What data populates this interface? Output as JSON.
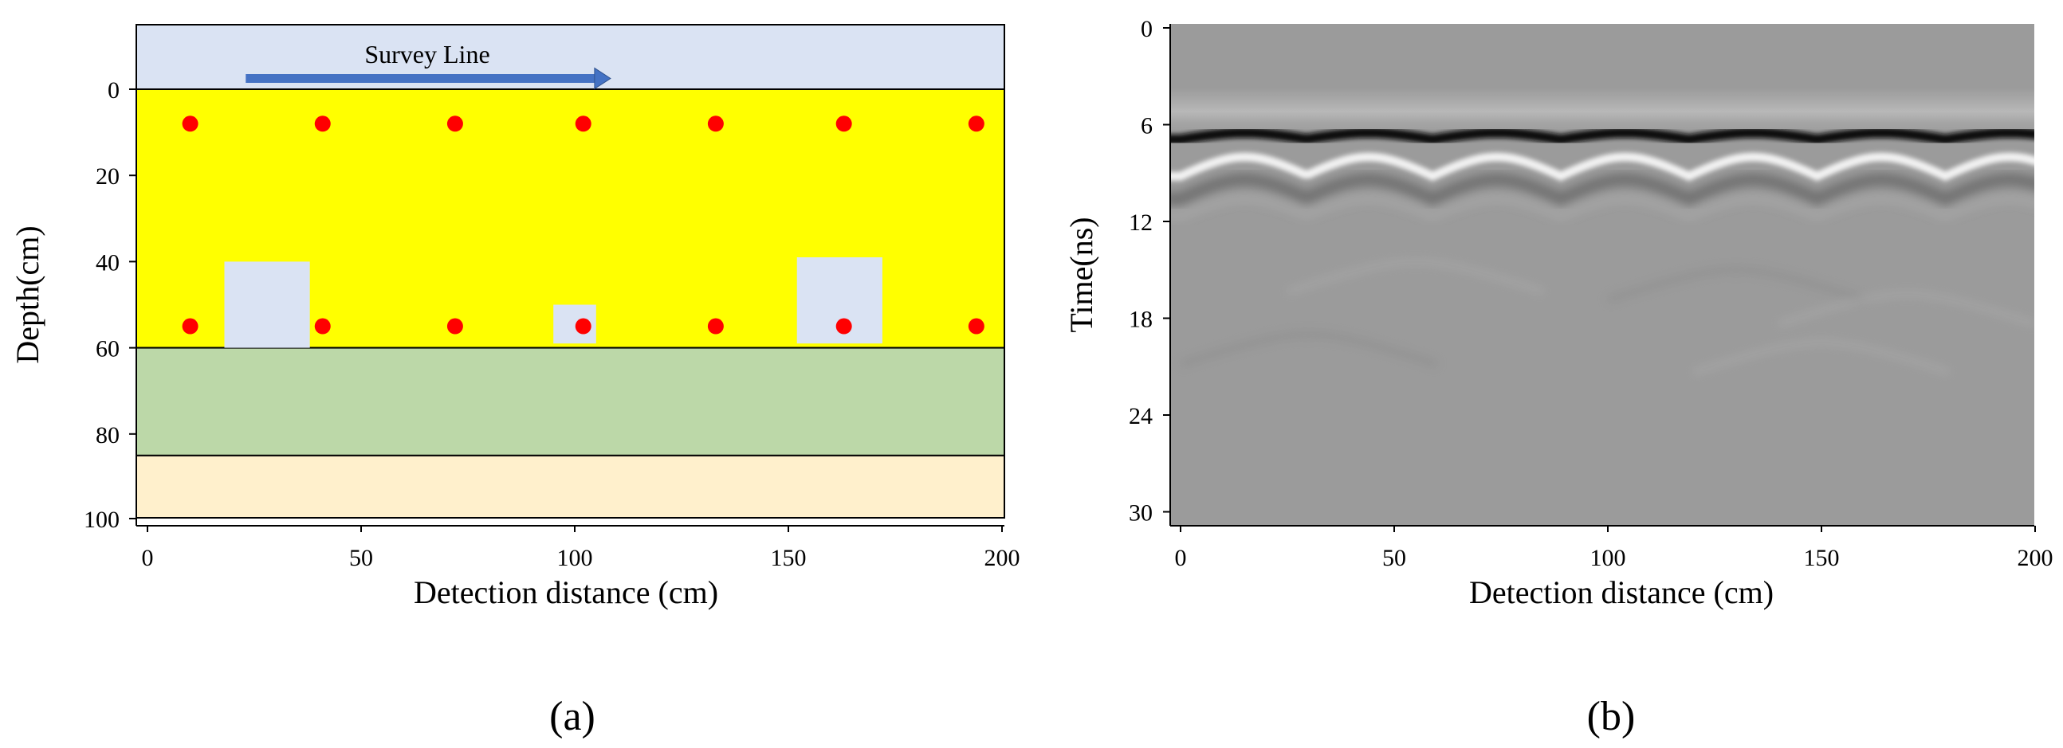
{
  "panel_a": {
    "survey_line_label": "Survey Line",
    "xlabel": "Detection distance (cm)",
    "ylabel": "Depth(cm)",
    "caption": "(a)",
    "x_ticks": [
      "0",
      "50",
      "100",
      "150",
      "200"
    ],
    "y_ticks": [
      "0",
      "20",
      "40",
      "60",
      "80",
      "100"
    ],
    "x_range_cm": [
      0,
      200
    ],
    "y_range_cm": [
      -15,
      100
    ],
    "layers": [
      {
        "name": "air",
        "top_cm": -15,
        "bottom_cm": 0,
        "color": "#dae3f3"
      },
      {
        "name": "soil",
        "top_cm": 0,
        "bottom_cm": 60,
        "color": "#ffff00"
      },
      {
        "name": "layer2",
        "top_cm": 60,
        "bottom_cm": 85,
        "color": "#bcd8a8"
      },
      {
        "name": "layer3",
        "top_cm": 85,
        "bottom_cm": 100,
        "color": "#fff0cc"
      }
    ],
    "survey_arrow_cm": {
      "from_x": 23,
      "to_x": 108,
      "depth": -2.5
    },
    "red_points": {
      "color": "#ff0000",
      "x_cm": [
        10,
        41,
        72,
        102,
        133,
        163,
        194
      ],
      "depths_cm": [
        8,
        55
      ]
    },
    "voids": {
      "color": "#dae3f3",
      "items": [
        {
          "x1_cm": 18,
          "x2_cm": 38,
          "y1_cm": 40,
          "y2_cm": 60
        },
        {
          "x1_cm": 95,
          "x2_cm": 105,
          "y1_cm": 50,
          "y2_cm": 59
        },
        {
          "x1_cm": 152,
          "x2_cm": 172,
          "y1_cm": 39,
          "y2_cm": 59
        }
      ]
    }
  },
  "panel_b": {
    "xlabel": "Detection distance (cm)",
    "ylabel": "Time(ns)",
    "caption": "(b)",
    "x_ticks": [
      "0",
      "50",
      "100",
      "150",
      "200"
    ],
    "y_ticks": [
      "0",
      "6",
      "12",
      "18",
      "24",
      "30"
    ],
    "x_range_cm": [
      0,
      200
    ],
    "y_range_ns": [
      0,
      30.8
    ],
    "background_gray": "#9b9b9b",
    "direct_wave_ns": {
      "dark": 6.5,
      "bright": 8.0
    },
    "hyperbola_apexes_cm": [
      15,
      44,
      74,
      104,
      134,
      164,
      194
    ],
    "hyperbola_amplitude_ns": 1.2
  }
}
